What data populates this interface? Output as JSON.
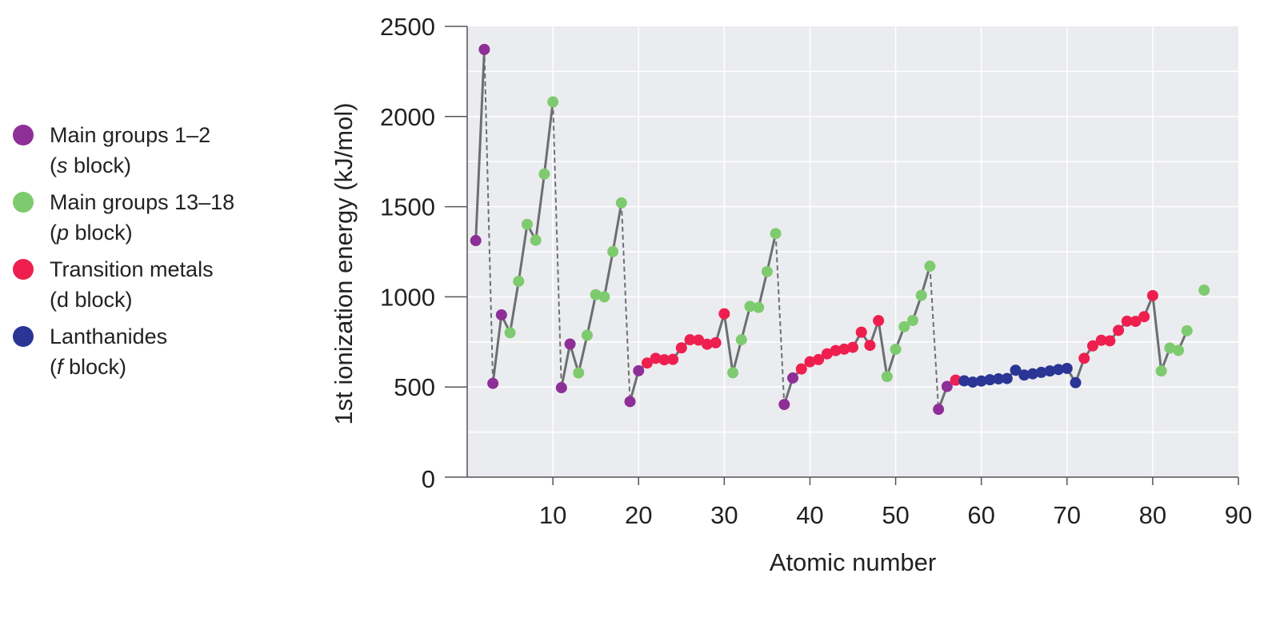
{
  "legend": [
    {
      "label_line1": "Main groups 1–2",
      "label_line2": "(s block)",
      "color": "#8e2f97"
    },
    {
      "label_line1": "Main groups 13–18",
      "label_line2": "(p block)",
      "color": "#7ecb6f"
    },
    {
      "label_line1": "Transition metals",
      "label_line2": "(d block)",
      "color": "#ee1f4f"
    },
    {
      "label_line1": "Lanthanides",
      "label_line2": "(f block)",
      "color": "#2b3595"
    }
  ],
  "chart_data": {
    "type": "scatter",
    "title": "",
    "xlabel": "Atomic number",
    "ylabel": "1st ionization energy (kJ/mol)",
    "xlim": [
      0,
      90
    ],
    "ylim": [
      0,
      2500
    ],
    "x_ticks": [
      10,
      20,
      30,
      40,
      50,
      60,
      70,
      80,
      90
    ],
    "y_ticks": [
      0,
      500,
      1000,
      1500,
      2000,
      2500
    ],
    "grid": true,
    "legend_position": "left",
    "plot_background": "#ebecef",
    "line_color": "#6d6e71",
    "series": [
      {
        "name": "Main groups 1–2",
        "color": "#8e2f97",
        "points": [
          [
            1,
            1312
          ],
          [
            2,
            2372
          ],
          [
            3,
            520
          ],
          [
            4,
            900
          ],
          [
            11,
            496
          ],
          [
            12,
            738
          ],
          [
            19,
            419
          ],
          [
            20,
            590
          ],
          [
            37,
            403
          ],
          [
            38,
            550
          ],
          [
            55,
            376
          ],
          [
            56,
            503
          ]
        ]
      },
      {
        "name": "Main groups 13–18",
        "color": "#7ecb6f",
        "points": [
          [
            5,
            801
          ],
          [
            6,
            1086
          ],
          [
            7,
            1402
          ],
          [
            8,
            1314
          ],
          [
            9,
            1681
          ],
          [
            10,
            2081
          ],
          [
            13,
            578
          ],
          [
            14,
            787
          ],
          [
            15,
            1012
          ],
          [
            16,
            1000
          ],
          [
            17,
            1251
          ],
          [
            18,
            1521
          ],
          [
            31,
            579
          ],
          [
            32,
            762
          ],
          [
            33,
            947
          ],
          [
            34,
            941
          ],
          [
            35,
            1140
          ],
          [
            36,
            1351
          ],
          [
            49,
            558
          ],
          [
            50,
            709
          ],
          [
            51,
            834
          ],
          [
            52,
            869
          ],
          [
            53,
            1008
          ],
          [
            54,
            1170
          ],
          [
            81,
            589
          ],
          [
            82,
            716
          ],
          [
            83,
            703
          ],
          [
            84,
            812
          ],
          [
            86,
            1037
          ]
        ]
      },
      {
        "name": "Transition metals",
        "color": "#ee1f4f",
        "points": [
          [
            21,
            633
          ],
          [
            22,
            659
          ],
          [
            23,
            651
          ],
          [
            24,
            653
          ],
          [
            25,
            717
          ],
          [
            26,
            762
          ],
          [
            27,
            760
          ],
          [
            28,
            737
          ],
          [
            29,
            745
          ],
          [
            30,
            906
          ],
          [
            39,
            600
          ],
          [
            40,
            640
          ],
          [
            41,
            652
          ],
          [
            42,
            684
          ],
          [
            43,
            702
          ],
          [
            44,
            710
          ],
          [
            45,
            720
          ],
          [
            46,
            804
          ],
          [
            47,
            731
          ],
          [
            48,
            868
          ],
          [
            57,
            538
          ],
          [
            72,
            659
          ],
          [
            73,
            728
          ],
          [
            74,
            759
          ],
          [
            75,
            756
          ],
          [
            76,
            814
          ],
          [
            77,
            865
          ],
          [
            78,
            864
          ],
          [
            79,
            890
          ],
          [
            80,
            1007
          ]
        ]
      },
      {
        "name": "Lanthanides",
        "color": "#2b3595",
        "points": [
          [
            58,
            534
          ],
          [
            59,
            527
          ],
          [
            60,
            533
          ],
          [
            61,
            540
          ],
          [
            62,
            545
          ],
          [
            63,
            547
          ],
          [
            64,
            593
          ],
          [
            65,
            566
          ],
          [
            66,
            573
          ],
          [
            67,
            581
          ],
          [
            68,
            589
          ],
          [
            69,
            597
          ],
          [
            70,
            603
          ],
          [
            71,
            524
          ]
        ]
      }
    ],
    "solid_segments": [
      [
        1,
        2
      ],
      [
        3,
        10
      ],
      [
        11,
        18
      ],
      [
        19,
        36
      ],
      [
        37,
        54
      ],
      [
        55,
        72
      ],
      [
        72,
        84
      ]
    ],
    "dashed_segments": [
      [
        2,
        3
      ],
      [
        10,
        11
      ],
      [
        18,
        19
      ],
      [
        36,
        37
      ],
      [
        54,
        55
      ]
    ]
  }
}
